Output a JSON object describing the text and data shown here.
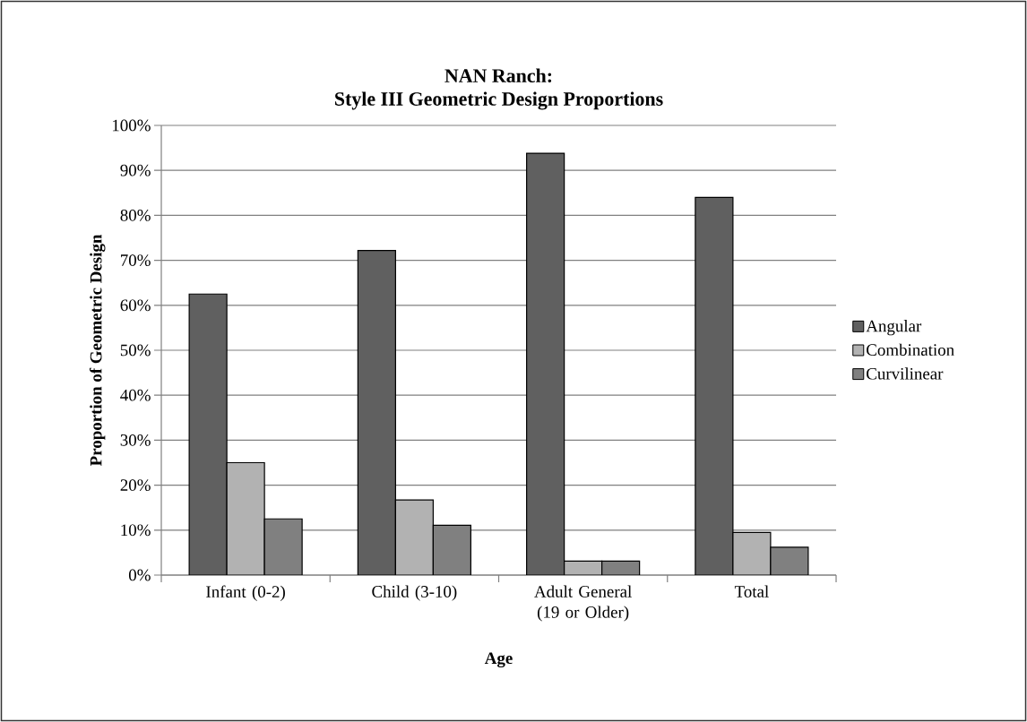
{
  "chart_data": {
    "type": "bar",
    "title": "NAN Ranch:",
    "subtitle": "Style III Geometric Design Proportions",
    "xlabel": "Age",
    "ylabel": "Proportion of Geometric Design",
    "categories": [
      "Infant (0-2)",
      "Child (3-10)",
      "Adult General (19 or Older)",
      "Total"
    ],
    "series": [
      {
        "name": "Angular",
        "color": "#606060",
        "values": [
          62.5,
          72.2,
          93.8,
          84.0
        ]
      },
      {
        "name": "Combination",
        "color": "#b2b2b2",
        "values": [
          25.0,
          16.7,
          3.1,
          9.5
        ]
      },
      {
        "name": "Curvilinear",
        "color": "#808080",
        "values": [
          12.5,
          11.1,
          3.1,
          6.2
        ]
      }
    ],
    "ylim": [
      0,
      100
    ],
    "yticks": [
      {
        "value": 0,
        "label": "0%"
      },
      {
        "value": 10,
        "label": "10%"
      },
      {
        "value": 20,
        "label": "20%"
      },
      {
        "value": 30,
        "label": "30%"
      },
      {
        "value": 40,
        "label": "40%"
      },
      {
        "value": 50,
        "label": "50%"
      },
      {
        "value": 60,
        "label": "60%"
      },
      {
        "value": 70,
        "label": "70%"
      },
      {
        "value": 80,
        "label": "80%"
      },
      {
        "value": 90,
        "label": "90%"
      },
      {
        "value": 100,
        "label": "100%"
      }
    ],
    "grid": "y",
    "legend": "right"
  }
}
